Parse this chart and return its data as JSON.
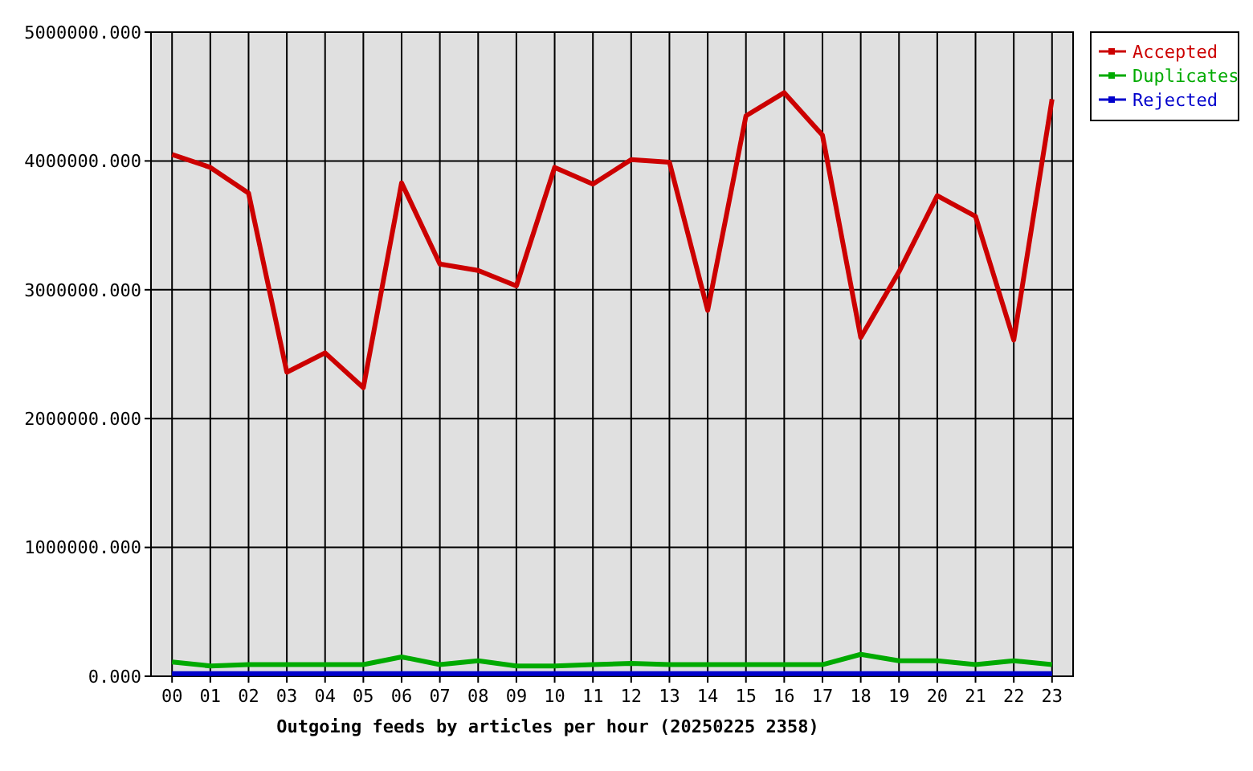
{
  "chart_data": {
    "type": "line",
    "xlabel": "Outgoing feeds by articles per hour (20250225 2358)",
    "categories": [
      "00",
      "01",
      "02",
      "03",
      "04",
      "05",
      "06",
      "07",
      "08",
      "09",
      "10",
      "11",
      "12",
      "13",
      "14",
      "15",
      "16",
      "17",
      "18",
      "19",
      "20",
      "21",
      "22",
      "23"
    ],
    "series": [
      {
        "name": "Accepted",
        "color": "#cc0000",
        "values": [
          4050000,
          3950000,
          3750000,
          2360000,
          2510000,
          2240000,
          3830000,
          3200000,
          3150000,
          3030000,
          3950000,
          3820000,
          4010000,
          3990000,
          2840000,
          4350000,
          4530000,
          4200000,
          2630000,
          3140000,
          3730000,
          3570000,
          2610000,
          4480000
        ]
      },
      {
        "name": "Duplicates",
        "color": "#00aa00",
        "values": [
          110000,
          80000,
          90000,
          90000,
          90000,
          90000,
          150000,
          90000,
          120000,
          80000,
          80000,
          90000,
          100000,
          90000,
          90000,
          90000,
          90000,
          90000,
          170000,
          120000,
          120000,
          90000,
          120000,
          90000
        ]
      },
      {
        "name": "Rejected",
        "color": "#0000cc",
        "values": [
          20000,
          20000,
          20000,
          20000,
          20000,
          20000,
          20000,
          20000,
          20000,
          20000,
          20000,
          20000,
          20000,
          20000,
          20000,
          20000,
          20000,
          20000,
          20000,
          20000,
          20000,
          20000,
          20000,
          20000
        ]
      }
    ],
    "ylim": [
      0,
      5000000
    ],
    "yticks": [
      {
        "value": 0,
        "label": "0.000"
      },
      {
        "value": 1000000,
        "label": "1000000.000"
      },
      {
        "value": 2000000,
        "label": "2000000.000"
      },
      {
        "value": 3000000,
        "label": "3000000.000"
      },
      {
        "value": 4000000,
        "label": "4000000.000"
      },
      {
        "value": 5000000,
        "label": "5000000.000"
      }
    ],
    "grid": true,
    "legend": "top right",
    "line_style": "solid"
  }
}
